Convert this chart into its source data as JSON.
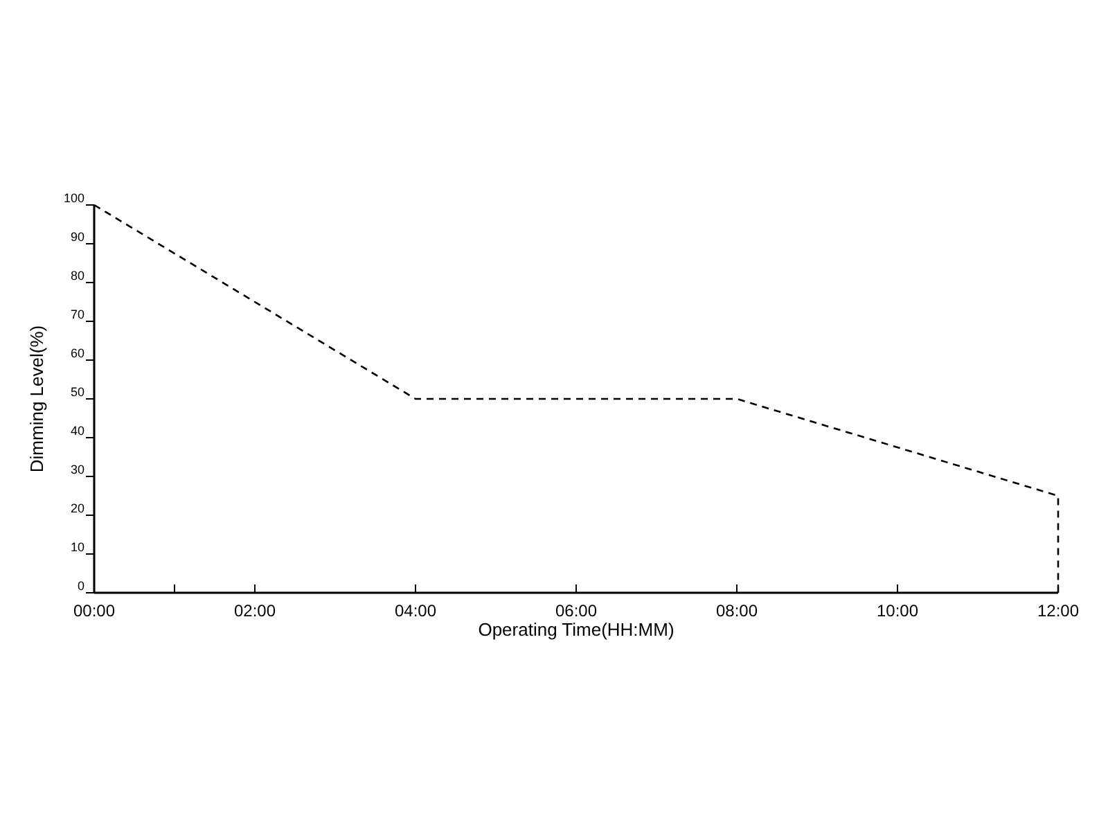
{
  "chart_data": {
    "type": "line",
    "xlabel": "Operating Time(HH:MM)",
    "ylabel": "Dimming Level(%)",
    "x": [
      0,
      4,
      8,
      12,
      12
    ],
    "series": [
      {
        "color": "#000000",
        "values": [
          100,
          50,
          50,
          25,
          0
        ]
      }
    ],
    "line_style": "dashed",
    "marker": "none",
    "grid": false,
    "xlim": [
      0,
      12
    ],
    "ylim": [
      0,
      100
    ],
    "xticks": [
      {
        "value": 0,
        "label": "00:00"
      },
      {
        "value": 1,
        "label": null
      },
      {
        "value": 2,
        "label": "02:00"
      },
      {
        "value": 4,
        "label": "04:00"
      },
      {
        "value": 6,
        "label": "06:00"
      },
      {
        "value": 8,
        "label": "08:00"
      },
      {
        "value": 10,
        "label": "10:00"
      },
      {
        "value": 12,
        "label": "12:00"
      }
    ],
    "yticks": [
      0,
      10,
      20,
      30,
      40,
      50,
      60,
      70,
      80,
      90,
      100
    ]
  }
}
